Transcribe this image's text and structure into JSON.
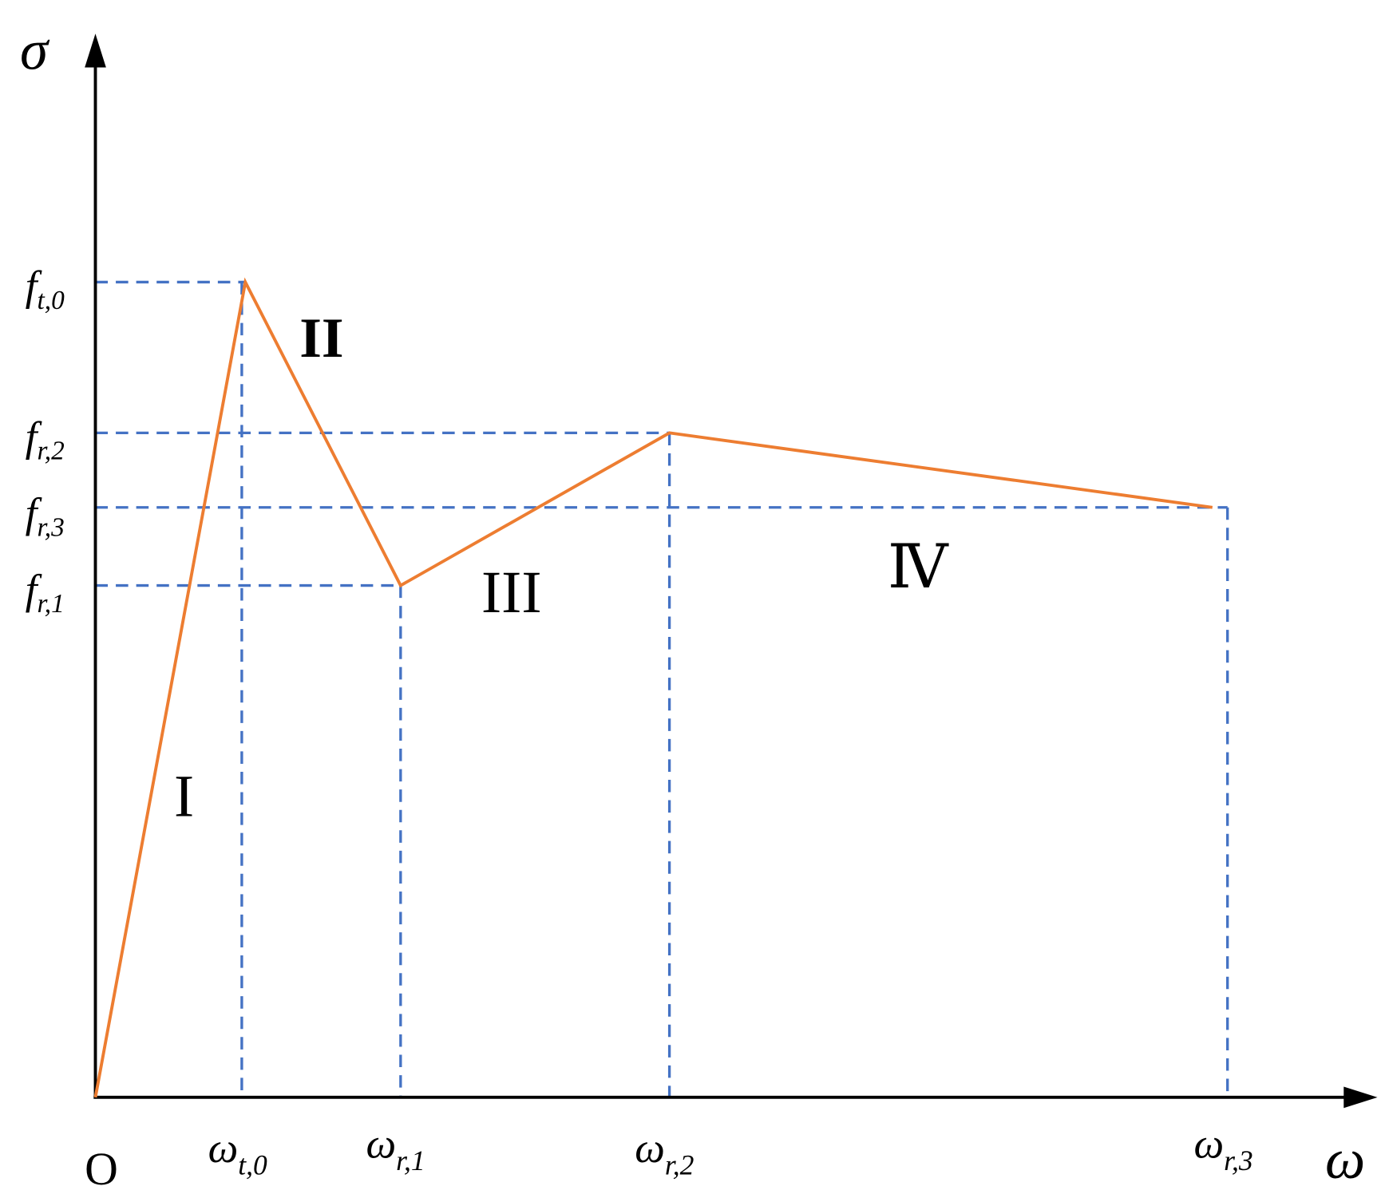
{
  "axes": {
    "y_label": "σ",
    "x_label": "ω",
    "origin": "O"
  },
  "y_ticks": [
    {
      "base": "f",
      "sub": "t,0"
    },
    {
      "base": "f",
      "sub": "r,2"
    },
    {
      "base": "f",
      "sub": "r,3"
    },
    {
      "base": "f",
      "sub": "r,1"
    }
  ],
  "x_ticks": [
    {
      "base": "ω",
      "sub": "t,0"
    },
    {
      "base": "ω",
      "sub": "r,1"
    },
    {
      "base": "ω",
      "sub": "r,2"
    },
    {
      "base": "ω",
      "sub": "r,3"
    }
  ],
  "regions": [
    "I",
    "II",
    "III",
    "Ⅳ"
  ]
}
